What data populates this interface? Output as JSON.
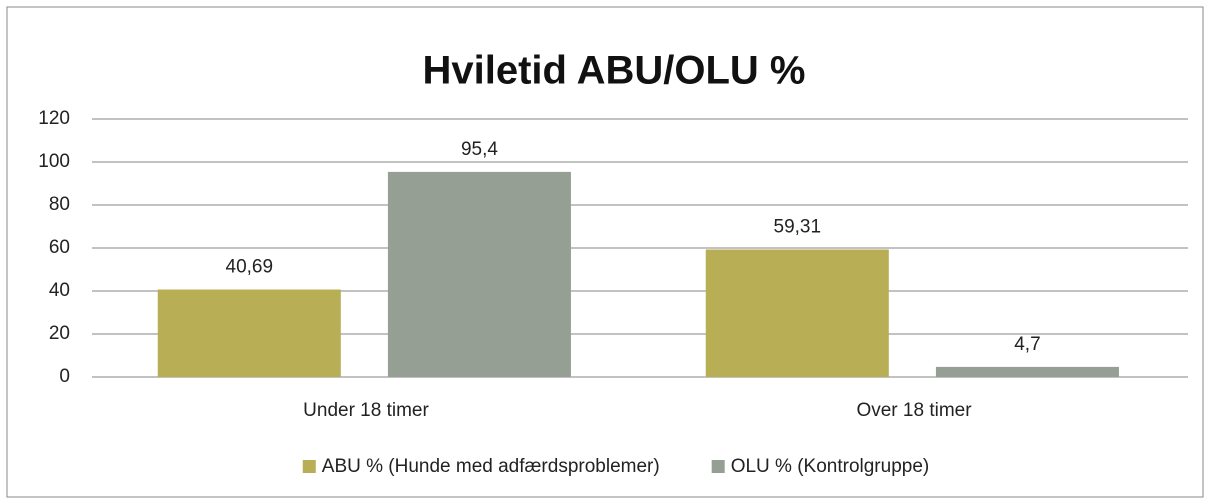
{
  "chart_data": {
    "type": "bar",
    "title": "Hviletid ABU/OLU %",
    "categories": [
      "Under 18 timer",
      "Over 18 timer"
    ],
    "series": [
      {
        "name": "ABU % (Hunde med adfærdsproblemer)",
        "color": "#b8ae56",
        "values": [
          40.69,
          59.31
        ],
        "value_labels": [
          "40,69",
          "59,31"
        ]
      },
      {
        "name": "OLU % (Kontrolgruppe)",
        "color": "#959f94",
        "values": [
          95.4,
          4.7
        ],
        "value_labels": [
          "95,4",
          "4,7"
        ]
      }
    ],
    "ylim": [
      0,
      120
    ],
    "yticks": [
      0,
      20,
      40,
      60,
      80,
      100,
      120
    ],
    "grid": true,
    "legend": "bottom"
  }
}
